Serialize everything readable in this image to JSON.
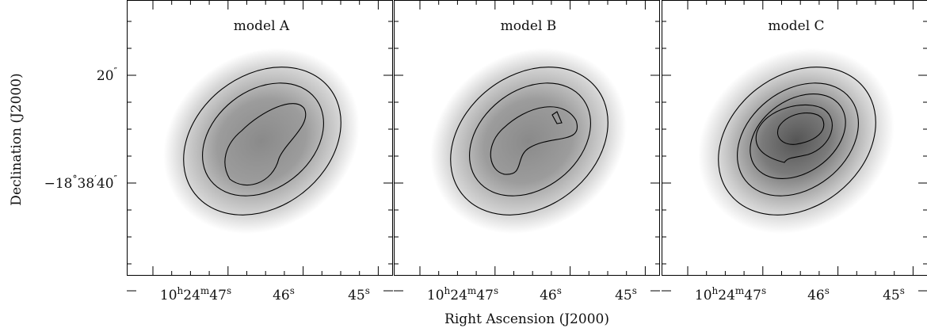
{
  "figure": {
    "panels": [
      {
        "title": "model A"
      },
      {
        "title": "model B"
      },
      {
        "title": "model C"
      }
    ],
    "x_axis": {
      "label": "Right Ascension (J2000)",
      "ticks": [
        {
          "parts": [
            "10",
            "h",
            "24",
            "m",
            "47",
            "s"
          ]
        },
        {
          "parts": [
            "46",
            "s"
          ]
        },
        {
          "parts": [
            "45",
            "s"
          ]
        }
      ]
    },
    "y_axis": {
      "label": "Declination (J2000)",
      "ticks": [
        {
          "parts": [
            "20",
            "″"
          ]
        },
        {
          "parts": [
            "−18",
            "°",
            "38",
            "′",
            "40",
            "″"
          ]
        }
      ]
    }
  }
}
